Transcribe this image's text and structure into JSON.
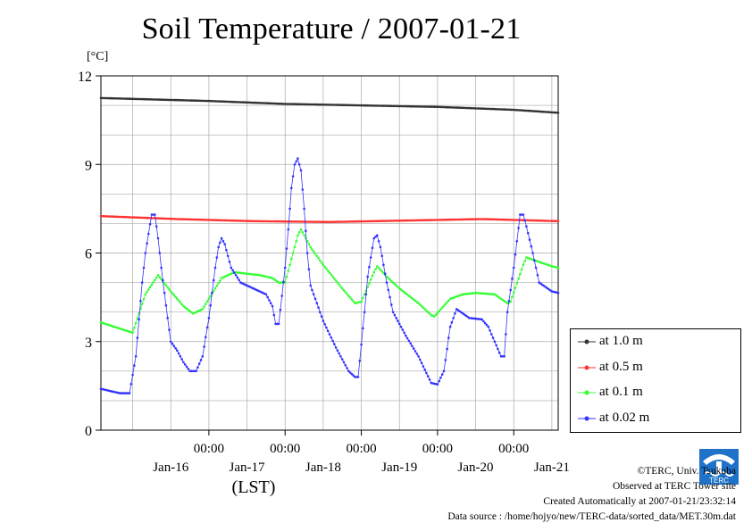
{
  "title": "Soil Temperature / 2007-01-21",
  "unit_label": "[°C]",
  "footer": {
    "credit": "©TERC, Univ. Tsukuba",
    "observed": "Observed at TERC Tower site",
    "created": "Created Automatically at 2007-01-21/23:32:14",
    "source": "Data source : /home/hojyo/new/TERC-data/sorted_data/MET.30m.dat"
  },
  "logo_text": "TERC",
  "chart_data": {
    "type": "line",
    "title": "Soil Temperature / 2007-01-21",
    "ylabel": "[°C]",
    "xlabel": "(LST)",
    "ylim": [
      0,
      12
    ],
    "yticks": [
      0,
      3,
      6,
      9,
      12
    ],
    "xlim": [
      -34,
      110
    ],
    "x_unit": "hours relative to 2007-01-16 00:00",
    "xticks": [
      {
        "x": 0,
        "label": "00:00"
      },
      {
        "x": 24,
        "label": "00:00"
      },
      {
        "x": 48,
        "label": "00:00"
      },
      {
        "x": 72,
        "label": "00:00"
      },
      {
        "x": 96,
        "label": "00:00"
      }
    ],
    "date_labels": [
      {
        "x": -12,
        "label": "Jan-16"
      },
      {
        "x": 12,
        "label": "Jan-17"
      },
      {
        "x": 36,
        "label": "Jan-18"
      },
      {
        "x": 60,
        "label": "Jan-19"
      },
      {
        "x": 84,
        "label": "Jan-20"
      },
      {
        "x": 108,
        "label": "Jan-21"
      }
    ],
    "grid": true,
    "legend_position": "right",
    "series": [
      {
        "name": "at 1.0 m",
        "color": "#333333",
        "points": [
          [
            -34,
            11.25
          ],
          [
            0,
            11.15
          ],
          [
            24,
            11.05
          ],
          [
            48,
            11.0
          ],
          [
            72,
            10.95
          ],
          [
            96,
            10.85
          ],
          [
            110,
            10.75
          ]
        ]
      },
      {
        "name": "at 0.5 m",
        "color": "#ff3333",
        "points": [
          [
            -34,
            7.25
          ],
          [
            -10,
            7.15
          ],
          [
            14,
            7.08
          ],
          [
            38,
            7.05
          ],
          [
            62,
            7.1
          ],
          [
            86,
            7.15
          ],
          [
            110,
            7.08
          ]
        ]
      },
      {
        "name": "at 0.1 m",
        "color": "#33ff33",
        "points": [
          [
            -34,
            3.65
          ],
          [
            -24,
            3.3
          ],
          [
            -20,
            4.6
          ],
          [
            -16,
            5.25
          ],
          [
            -12,
            4.7
          ],
          [
            -8,
            4.2
          ],
          [
            -5,
            3.95
          ],
          [
            -2,
            4.1
          ],
          [
            4,
            5.15
          ],
          [
            8,
            5.35
          ],
          [
            12,
            5.3
          ],
          [
            16,
            5.25
          ],
          [
            20,
            5.15
          ],
          [
            22,
            5.0
          ],
          [
            24,
            5.0
          ],
          [
            28,
            6.6
          ],
          [
            29,
            6.8
          ],
          [
            32,
            6.2
          ],
          [
            36,
            5.6
          ],
          [
            42,
            4.8
          ],
          [
            46,
            4.3
          ],
          [
            48,
            4.35
          ],
          [
            52,
            5.35
          ],
          [
            53,
            5.55
          ],
          [
            56,
            5.2
          ],
          [
            60,
            4.8
          ],
          [
            66,
            4.3
          ],
          [
            70,
            3.9
          ],
          [
            71,
            3.85
          ],
          [
            76,
            4.45
          ],
          [
            80,
            4.6
          ],
          [
            84,
            4.65
          ],
          [
            90,
            4.6
          ],
          [
            94,
            4.3
          ],
          [
            95,
            4.35
          ],
          [
            99,
            5.6
          ],
          [
            100,
            5.85
          ],
          [
            104,
            5.7
          ],
          [
            108,
            5.55
          ],
          [
            110,
            5.5
          ]
        ]
      },
      {
        "name": "at 0.02 m",
        "color": "#3333ff",
        "points": [
          [
            -34,
            1.4
          ],
          [
            -28,
            1.25
          ],
          [
            -25,
            1.25
          ],
          [
            -23,
            2.5
          ],
          [
            -21,
            5.0
          ],
          [
            -20,
            6.0
          ],
          [
            -18,
            7.3
          ],
          [
            -17,
            7.3
          ],
          [
            -16,
            6.5
          ],
          [
            -15,
            5.5
          ],
          [
            -13,
            3.8
          ],
          [
            -12,
            3.0
          ],
          [
            -10,
            2.7
          ],
          [
            -8,
            2.3
          ],
          [
            -6,
            2.0
          ],
          [
            -4,
            2.0
          ],
          [
            -2,
            2.5
          ],
          [
            0,
            3.8
          ],
          [
            2,
            5.5
          ],
          [
            3,
            6.2
          ],
          [
            4,
            6.5
          ],
          [
            5,
            6.3
          ],
          [
            7,
            5.5
          ],
          [
            10,
            5.0
          ],
          [
            14,
            4.8
          ],
          [
            18,
            4.6
          ],
          [
            20,
            4.2
          ],
          [
            21,
            3.6
          ],
          [
            22,
            3.6
          ],
          [
            24,
            5.5
          ],
          [
            25,
            6.8
          ],
          [
            26,
            8.2
          ],
          [
            27,
            9.0
          ],
          [
            28,
            9.2
          ],
          [
            29,
            8.8
          ],
          [
            30,
            7.5
          ],
          [
            31,
            6.0
          ],
          [
            32,
            4.9
          ],
          [
            36,
            3.7
          ],
          [
            40,
            2.8
          ],
          [
            44,
            2.0
          ],
          [
            46,
            1.8
          ],
          [
            47,
            1.8
          ],
          [
            49,
            4.0
          ],
          [
            50,
            5.2
          ],
          [
            52,
            6.5
          ],
          [
            53,
            6.6
          ],
          [
            54,
            6.2
          ],
          [
            56,
            5.0
          ],
          [
            58,
            4.0
          ],
          [
            62,
            3.2
          ],
          [
            66,
            2.5
          ],
          [
            70,
            1.6
          ],
          [
            72,
            1.55
          ],
          [
            74,
            2.0
          ],
          [
            76,
            3.5
          ],
          [
            78,
            4.1
          ],
          [
            80,
            3.95
          ],
          [
            82,
            3.8
          ],
          [
            86,
            3.75
          ],
          [
            88,
            3.5
          ],
          [
            90,
            3.0
          ],
          [
            92,
            2.5
          ],
          [
            93,
            2.5
          ],
          [
            94,
            4.0
          ],
          [
            96,
            5.5
          ],
          [
            98,
            7.3
          ],
          [
            99,
            7.3
          ],
          [
            100,
            6.9
          ],
          [
            102,
            6.0
          ],
          [
            104,
            5.0
          ],
          [
            106,
            4.85
          ],
          [
            108,
            4.7
          ],
          [
            110,
            4.65
          ]
        ]
      }
    ]
  }
}
